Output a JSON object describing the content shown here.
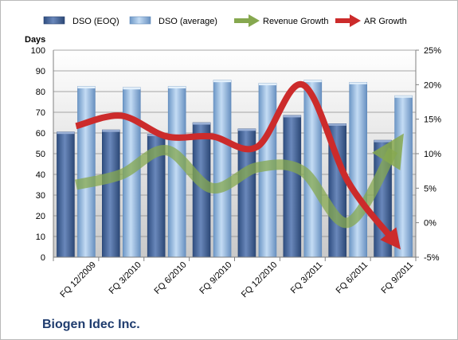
{
  "chart_data": {
    "type": "bar",
    "y_axis_title": "Days",
    "categories": [
      "FQ 12/2009",
      "FQ 3/2010",
      "FQ 6/2010",
      "FQ 9/2010",
      "FQ 12/2010",
      "FQ 3/2011",
      "FQ 6/2011",
      "FQ 9/2011"
    ],
    "ylim": [
      0,
      100
    ],
    "y_ticks": [
      0,
      10,
      20,
      30,
      40,
      50,
      60,
      70,
      80,
      90,
      100
    ],
    "y2lim": [
      -5,
      25
    ],
    "y2_ticks": [
      -5,
      0,
      5,
      10,
      15,
      20,
      25
    ],
    "y2_tick_labels": [
      "-5%",
      "0%",
      "5%",
      "10%",
      "15%",
      "20%",
      "25%"
    ],
    "legend_position": "top",
    "grid": true,
    "series": [
      {
        "name": "DSO (EOQ)",
        "kind": "bar",
        "axis": "left",
        "color": "#4f6da0",
        "values": [
          60.5,
          61.5,
          59.5,
          65,
          62,
          68.5,
          64.5,
          56.5
        ]
      },
      {
        "name": "DSO (average)",
        "kind": "bar",
        "axis": "left",
        "color": "#8cb4dc",
        "values": [
          82.5,
          82,
          82.5,
          85.5,
          84,
          85.5,
          84.5,
          78
        ]
      },
      {
        "name": "Revenue Growth",
        "kind": "line",
        "axis": "right",
        "color": "#86a84f",
        "values": [
          5.5,
          7,
          10.5,
          5,
          8,
          7.5,
          0,
          10.5
        ]
      },
      {
        "name": "AR Growth",
        "kind": "line",
        "axis": "right",
        "color": "#cc2b2b",
        "values": [
          14,
          15.5,
          12.5,
          12.5,
          11,
          20,
          6,
          -2.5
        ]
      }
    ]
  },
  "company_label": "Biogen Idec Inc."
}
